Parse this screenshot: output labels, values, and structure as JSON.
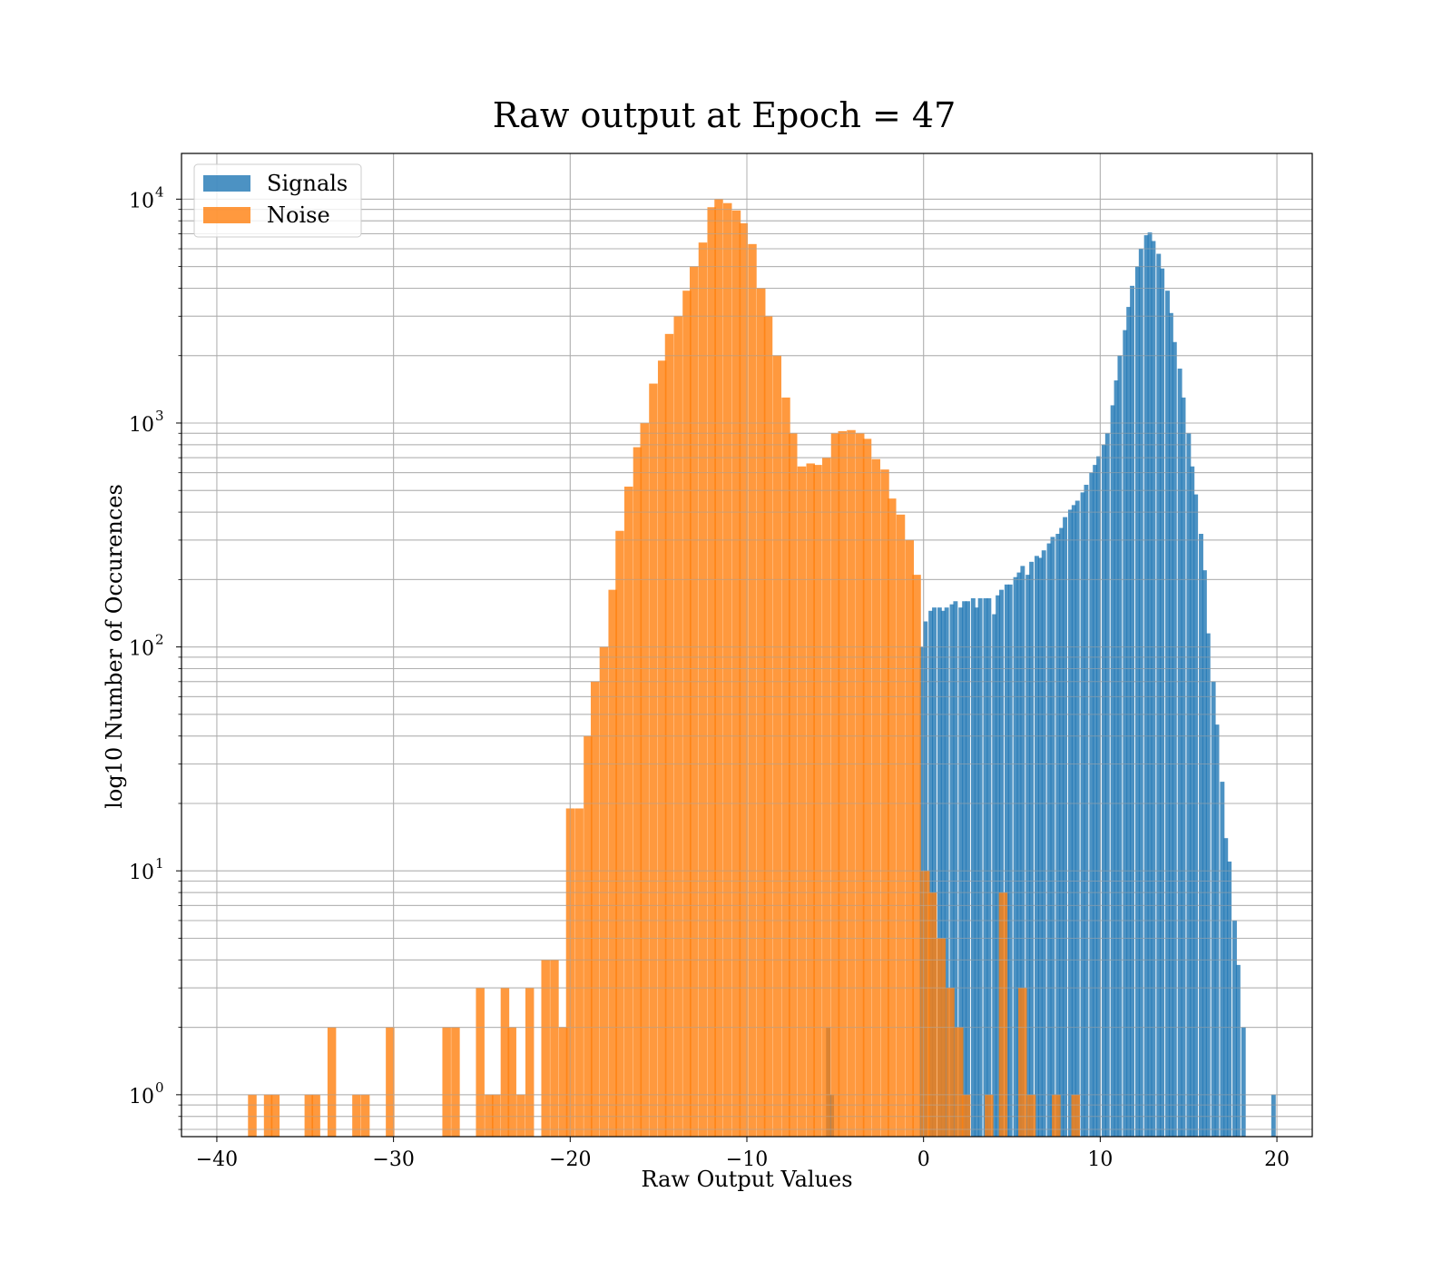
{
  "chart_data": {
    "type": "bar",
    "title": "Raw output at Epoch = 47",
    "xlabel": "Raw Output Values",
    "ylabel": "log10 Number of Occurences",
    "xlim": [
      -42,
      22
    ],
    "ylim": [
      0.65,
      16000
    ],
    "yscale": "log",
    "grid": true,
    "legend_position": "top-left",
    "x_ticks": [
      -40,
      -30,
      -20,
      -10,
      0,
      10,
      20
    ],
    "x_tick_labels": [
      "−40",
      "−30",
      "−20",
      "−10",
      "0",
      "10",
      "20"
    ],
    "y_ticks": [
      {
        "value": 1,
        "base": "10",
        "exp": "0"
      },
      {
        "value": 10,
        "base": "10",
        "exp": "1"
      },
      {
        "value": 100,
        "base": "10",
        "exp": "2"
      },
      {
        "value": 1000,
        "base": "10",
        "exp": "3"
      },
      {
        "value": 10000,
        "base": "10",
        "exp": "4"
      }
    ],
    "series": [
      {
        "name": "Signals",
        "color": "#1f77b4",
        "opacity": 0.8,
        "bin_width": 0.237,
        "bins": [
          [
            -5.4,
            2
          ],
          [
            -5.2,
            1
          ],
          [
            -0.1,
            100
          ],
          [
            0.1,
            130
          ],
          [
            0.4,
            145
          ],
          [
            0.6,
            150
          ],
          [
            0.9,
            150
          ],
          [
            1.1,
            145
          ],
          [
            1.3,
            150
          ],
          [
            1.6,
            155
          ],
          [
            1.8,
            160
          ],
          [
            2.1,
            150
          ],
          [
            2.3,
            160
          ],
          [
            2.5,
            160
          ],
          [
            2.8,
            165
          ],
          [
            3.0,
            150
          ],
          [
            3.2,
            165
          ],
          [
            3.5,
            165
          ],
          [
            3.7,
            165
          ],
          [
            4.0,
            140
          ],
          [
            4.2,
            170
          ],
          [
            4.4,
            180
          ],
          [
            4.7,
            190
          ],
          [
            4.9,
            190
          ],
          [
            5.2,
            205
          ],
          [
            5.4,
            215
          ],
          [
            5.6,
            230
          ],
          [
            5.9,
            210
          ],
          [
            6.1,
            240
          ],
          [
            6.4,
            255
          ],
          [
            6.6,
            250
          ],
          [
            6.8,
            270
          ],
          [
            7.1,
            290
          ],
          [
            7.3,
            310
          ],
          [
            7.6,
            320
          ],
          [
            7.8,
            340
          ],
          [
            8.0,
            380
          ],
          [
            8.3,
            410
          ],
          [
            8.5,
            430
          ],
          [
            8.7,
            450
          ],
          [
            9.0,
            490
          ],
          [
            9.2,
            530
          ],
          [
            9.5,
            600
          ],
          [
            9.7,
            650
          ],
          [
            9.9,
            710
          ],
          [
            10.2,
            800
          ],
          [
            10.4,
            900
          ],
          [
            10.7,
            1200
          ],
          [
            10.9,
            1550
          ],
          [
            11.1,
            2000
          ],
          [
            11.4,
            2600
          ],
          [
            11.6,
            3300
          ],
          [
            11.8,
            4100
          ],
          [
            12.1,
            5000
          ],
          [
            12.3,
            6000
          ],
          [
            12.6,
            6900
          ],
          [
            12.8,
            7100
          ],
          [
            13.0,
            6500
          ],
          [
            13.3,
            5700
          ],
          [
            13.5,
            4900
          ],
          [
            13.8,
            3900
          ],
          [
            14.0,
            3100
          ],
          [
            14.2,
            2300
          ],
          [
            14.5,
            1750
          ],
          [
            14.7,
            1300
          ],
          [
            15.0,
            900
          ],
          [
            15.2,
            640
          ],
          [
            15.4,
            480
          ],
          [
            15.7,
            320
          ],
          [
            15.9,
            220
          ],
          [
            16.1,
            115
          ],
          [
            16.4,
            70
          ],
          [
            16.6,
            45
          ],
          [
            16.9,
            25
          ],
          [
            17.1,
            14
          ],
          [
            17.3,
            11
          ],
          [
            17.6,
            6
          ],
          [
            17.8,
            3.8
          ],
          [
            18.1,
            2
          ],
          [
            19.8,
            1
          ]
        ]
      },
      {
        "name": "Noise",
        "color": "#ff7f0e",
        "opacity": 0.8,
        "bin_width": 0.471,
        "bins": [
          [
            -38.0,
            1
          ],
          [
            -37.1,
            1
          ],
          [
            -36.7,
            1
          ],
          [
            -34.8,
            1
          ],
          [
            -34.4,
            1
          ],
          [
            -33.5,
            2
          ],
          [
            -32.1,
            1
          ],
          [
            -31.6,
            1
          ],
          [
            -30.2,
            2
          ],
          [
            -27.0,
            2
          ],
          [
            -26.5,
            2
          ],
          [
            -25.1,
            3
          ],
          [
            -24.6,
            1
          ],
          [
            -24.2,
            1
          ],
          [
            -23.7,
            3
          ],
          [
            -23.3,
            2
          ],
          [
            -22.8,
            1
          ],
          [
            -22.3,
            3
          ],
          [
            -21.4,
            4
          ],
          [
            -20.9,
            4
          ],
          [
            -20.4,
            2
          ],
          [
            -20.0,
            19
          ],
          [
            -19.5,
            19
          ],
          [
            -19.0,
            40
          ],
          [
            -18.6,
            70
          ],
          [
            -18.1,
            100
          ],
          [
            -17.6,
            180
          ],
          [
            -17.2,
            330
          ],
          [
            -16.7,
            520
          ],
          [
            -16.2,
            780
          ],
          [
            -15.8,
            1000
          ],
          [
            -15.3,
            1500
          ],
          [
            -14.8,
            1900
          ],
          [
            -14.4,
            2500
          ],
          [
            -13.9,
            3000
          ],
          [
            -13.4,
            3900
          ],
          [
            -13.0,
            5000
          ],
          [
            -12.5,
            6400
          ],
          [
            -12.0,
            9200
          ],
          [
            -11.6,
            10000
          ],
          [
            -11.1,
            9600
          ],
          [
            -10.6,
            8900
          ],
          [
            -10.2,
            7800
          ],
          [
            -9.7,
            6300
          ],
          [
            -9.2,
            4000
          ],
          [
            -8.8,
            3000
          ],
          [
            -8.3,
            2000
          ],
          [
            -7.8,
            1300
          ],
          [
            -7.4,
            900
          ],
          [
            -6.9,
            640
          ],
          [
            -6.4,
            660
          ],
          [
            -6.0,
            650
          ],
          [
            -5.5,
            700
          ],
          [
            -5.0,
            900
          ],
          [
            -4.6,
            920
          ],
          [
            -4.1,
            930
          ],
          [
            -3.6,
            900
          ],
          [
            -3.2,
            850
          ],
          [
            -2.7,
            690
          ],
          [
            -2.2,
            620
          ],
          [
            -1.8,
            460
          ],
          [
            -1.3,
            390
          ],
          [
            -0.8,
            300
          ],
          [
            -0.4,
            210
          ],
          [
            0.1,
            10
          ],
          [
            0.5,
            8
          ],
          [
            1.0,
            5
          ],
          [
            1.5,
            3
          ],
          [
            2.0,
            2
          ],
          [
            2.4,
            1
          ],
          [
            3.7,
            1
          ],
          [
            4.5,
            8
          ],
          [
            5.6,
            3
          ],
          [
            6.1,
            1
          ],
          [
            7.5,
            1
          ],
          [
            8.6,
            1
          ]
        ]
      }
    ]
  }
}
